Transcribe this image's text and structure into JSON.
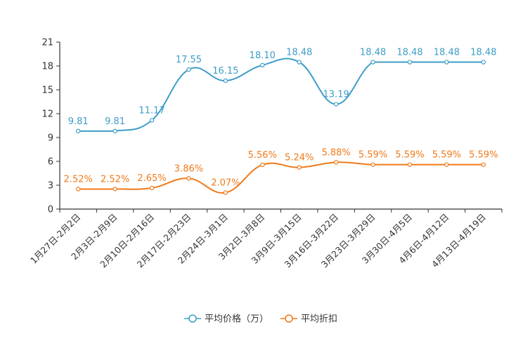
{
  "chart_data": {
    "type": "line",
    "title": "",
    "xlabel": "",
    "ylabel": "",
    "ylim": [
      0,
      21
    ],
    "yticks": [
      0,
      3,
      6,
      9,
      12,
      15,
      18,
      21
    ],
    "ytick_labels": [
      "0",
      "3",
      "6",
      "9",
      "12",
      "15",
      "18",
      "21"
    ],
    "categories": [
      "1月27日-2月2日",
      "2月3日-2月9日",
      "2月10日-2月16日",
      "2月17日-2月23日",
      "2月24日-3月1日",
      "3月2日-3月8日",
      "3月9日-3月15日",
      "3月16日-3月22日",
      "3月23日-3月29日",
      "3月30日-4月5日",
      "4月6日-4月12日",
      "4月13日-4月19日"
    ],
    "legend_position": "bottom-center",
    "series": [
      {
        "name": "平均价格（万）",
        "color": "#3d9dc8",
        "values": [
          9.81,
          9.81,
          11.17,
          17.55,
          16.15,
          18.1,
          18.48,
          13.19,
          18.48,
          18.48,
          18.48,
          18.48
        ],
        "labels": [
          "9.81",
          "9.81",
          "11.17",
          "17.55",
          "16.15",
          "18.10",
          "18.48",
          "13.19",
          "18.48",
          "18.48",
          "18.48",
          "18.48"
        ]
      },
      {
        "name": "平均折扣",
        "color": "#f07a1a",
        "values": [
          2.52,
          2.52,
          2.65,
          3.86,
          2.07,
          5.56,
          5.24,
          5.88,
          5.59,
          5.59,
          5.59,
          5.59
        ],
        "labels": [
          "2.52%",
          "2.52%",
          "2.65%",
          "3.86%",
          "2.07%",
          "5.56%",
          "5.24%",
          "5.88%",
          "5.59%",
          "5.59%",
          "5.59%",
          "5.59%"
        ]
      }
    ]
  }
}
